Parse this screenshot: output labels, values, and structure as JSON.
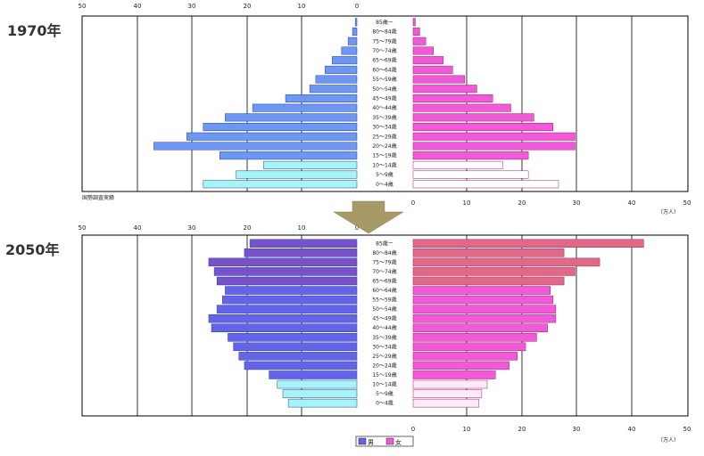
{
  "colors": {
    "male_1970": "#6e97f2",
    "female_1970": "#f05ad8",
    "male_1970_young": "#a8f4f4",
    "female_1970_young": "#ffffff",
    "male_2050": "#6664e6",
    "male_2050_old": "#7a52c8",
    "female_2050": "#f05ad8",
    "female_2050_old": "#e06a86",
    "male_2050_young": "#a8f4f4",
    "female_2050_young": "#ffeaf6",
    "arrow": "#a89a66",
    "grid": "#000000"
  },
  "axis_labels": {
    "unit": "（万人）",
    "top_left_ticks": [
      "50",
      "40",
      "30",
      "20",
      "10",
      "0"
    ],
    "bottom_right_ticks": [
      "0",
      "10",
      "20",
      "30",
      "40",
      "50"
    ]
  },
  "source_note": "国勢調査実績",
  "legend": {
    "male": "男",
    "female": "女"
  },
  "chart_data": [
    {
      "type": "bar",
      "title": "1970年",
      "orientation": "horizontal-pyramid",
      "age_groups": [
        "85歳ー",
        "80〜84歳",
        "75〜79歳",
        "70〜74歳",
        "65〜69歳",
        "60〜64歳",
        "55〜59歳",
        "50〜54歳",
        "45〜49歳",
        "40〜44歳",
        "35〜39歳",
        "30〜34歳",
        "25〜29歳",
        "20〜24歳",
        "15〜19歳",
        "10〜14歳",
        "5〜9歳",
        "0〜4歳"
      ],
      "series": [
        {
          "name": "男",
          "values": [
            0.3,
            0.8,
            1.6,
            2.8,
            4.5,
            5.8,
            7.5,
            8.6,
            13.0,
            19.0,
            24.0,
            28.0,
            31.0,
            37.0,
            25.0,
            17.0,
            22.0,
            28.0
          ]
        },
        {
          "name": "女",
          "values": [
            0.4,
            1.2,
            2.3,
            3.7,
            5.5,
            7.2,
            9.4,
            11.6,
            14.5,
            17.8,
            22.0,
            25.5,
            29.5,
            29.5,
            21.0,
            16.3,
            21.0,
            26.5
          ]
        }
      ],
      "xlim": [
        0,
        50
      ]
    },
    {
      "type": "bar",
      "title": "2050年",
      "orientation": "horizontal-pyramid",
      "age_groups": [
        "85歳ー",
        "80〜84歳",
        "75〜79歳",
        "70〜74歳",
        "65〜69歳",
        "60〜64歳",
        "55〜59歳",
        "50〜54歳",
        "45〜49歳",
        "40〜44歳",
        "35〜39歳",
        "30〜34歳",
        "25〜29歳",
        "20〜24歳",
        "15〜19歳",
        "10〜14歳",
        "5〜9歳",
        "0〜4歳"
      ],
      "series": [
        {
          "name": "男",
          "values": [
            19.5,
            20.5,
            27.0,
            26.0,
            25.5,
            24.0,
            24.5,
            25.5,
            27.0,
            26.5,
            23.5,
            22.5,
            21.5,
            20.5,
            16.0,
            14.5,
            13.5,
            12.5
          ]
        },
        {
          "name": "女",
          "values": [
            42.0,
            27.5,
            34.0,
            29.5,
            27.5,
            25.0,
            25.5,
            26.0,
            26.0,
            24.5,
            22.5,
            20.5,
            19.0,
            17.5,
            15.0,
            13.5,
            12.5,
            12.0
          ]
        }
      ],
      "xlim": [
        0,
        50
      ]
    }
  ]
}
